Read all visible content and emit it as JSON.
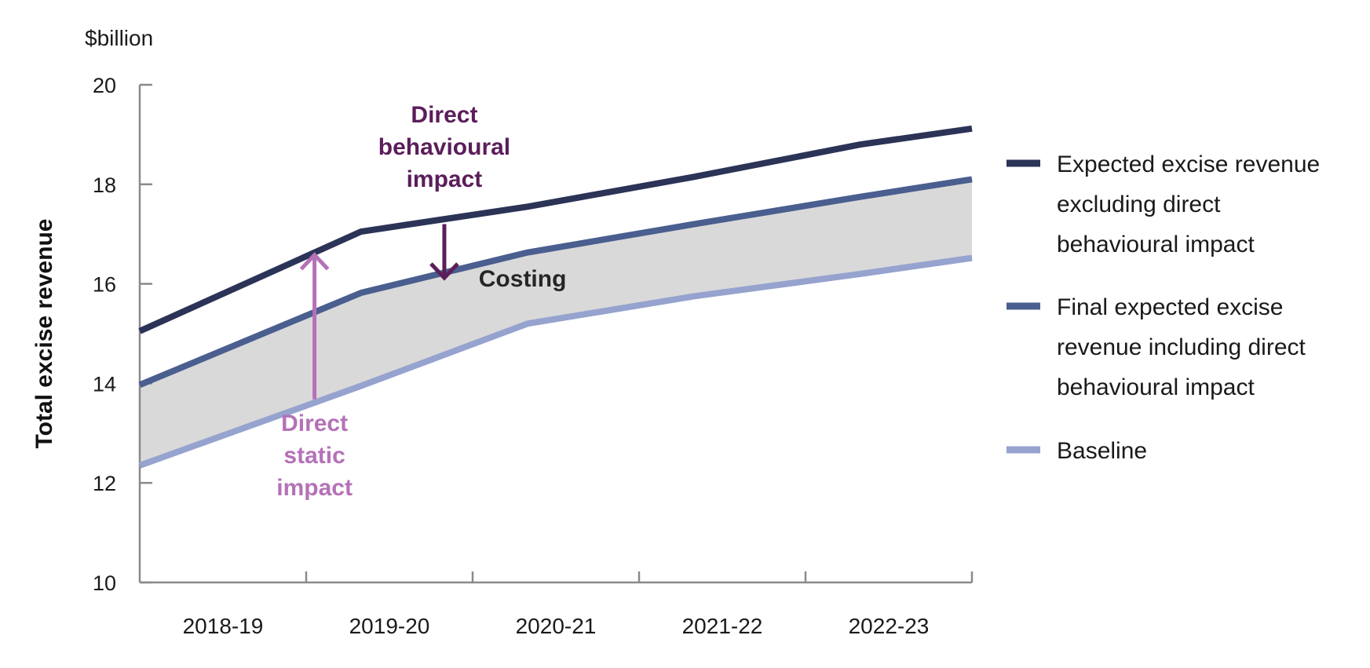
{
  "chart_data": {
    "type": "line",
    "unit_label": "$billion",
    "ylabel": "Total excise revenue",
    "xlabel": "",
    "ylim": [
      10,
      20
    ],
    "yticks": [
      10,
      12,
      14,
      16,
      18,
      20
    ],
    "categories": [
      "2018-19",
      "2019-20",
      "2020-21",
      "2021-22",
      "2022-23"
    ],
    "x_range": [
      2018,
      2023
    ],
    "grid": false,
    "legend_position": "right",
    "series": [
      {
        "name": "Expected excise revenue excluding direct behavioural impact",
        "legend_lines": [
          "Expected excise revenue",
          "excluding direct",
          "behavioural impact"
        ],
        "color": "#2b3357",
        "x": [
          2018.0,
          2019.33,
          2020.33,
          2021.33,
          2022.33,
          2023.0
        ],
        "y": [
          15.05,
          17.05,
          17.55,
          18.15,
          18.8,
          19.12
        ]
      },
      {
        "name": "Final expected excise revenue including direct behavioural impact",
        "legend_lines": [
          "Final expected excise",
          "revenue including direct",
          "behavioural impact"
        ],
        "color": "#4a5e8f",
        "x": [
          2018.0,
          2019.33,
          2020.33,
          2021.33,
          2022.33,
          2023.0
        ],
        "y": [
          13.97,
          15.82,
          16.63,
          17.2,
          17.75,
          18.1
        ]
      },
      {
        "name": "Baseline",
        "legend_lines": [
          "Baseline"
        ],
        "color": "#96a3cf",
        "x": [
          2018.0,
          2019.33,
          2020.33,
          2021.33,
          2022.33,
          2023.0
        ],
        "y": [
          12.35,
          13.95,
          15.2,
          15.75,
          16.2,
          16.52
        ]
      }
    ],
    "shaded_region": {
      "label": "Costing",
      "color": "#d9d9d9",
      "label_x": 2020.3,
      "label_y": 15.95
    },
    "annotations": [
      {
        "lines": [
          "Direct",
          "behavioural",
          "impact"
        ],
        "color": "#5a1e5a",
        "arrow_x": 2019.83,
        "arrow_from": 17.2,
        "arrow_to": 16.12,
        "label_x": 2019.83,
        "label_y": 18.6
      },
      {
        "lines": [
          "Direct",
          "static",
          "impact"
        ],
        "color": "#b571b8",
        "arrow_x": 2019.05,
        "arrow_from": 13.68,
        "arrow_to": 16.58,
        "label_x": 2019.05,
        "label_y": 12.4
      }
    ]
  }
}
